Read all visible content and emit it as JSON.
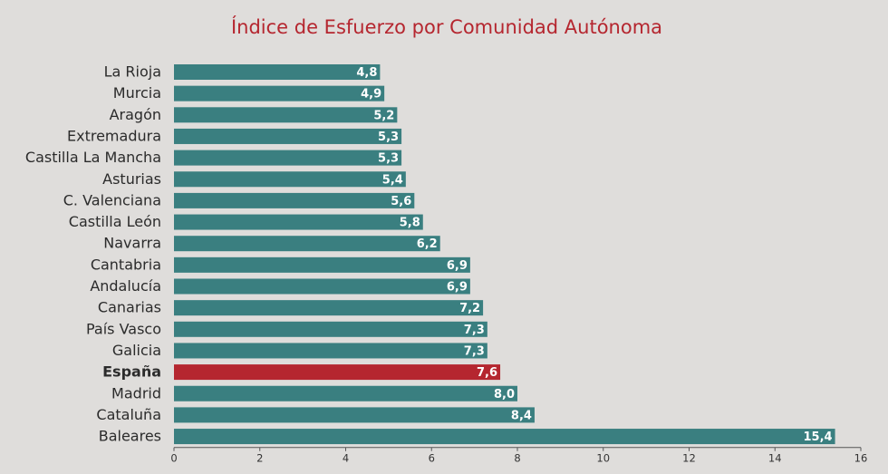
{
  "chart_data": {
    "type": "bar",
    "orientation": "horizontal",
    "title": "Índice de Esfuerzo por Comunidad Autónoma",
    "xlabel": "",
    "ylabel": "",
    "categories": [
      "La Rioja",
      "Murcia",
      "Aragón",
      "Extremadura",
      "Castilla La Mancha",
      "Asturias",
      "C. Valenciana",
      "Castilla León",
      "Navarra",
      "Cantabria",
      "Andalucía",
      "Canarias",
      "País Vasco",
      "Galicia",
      "España",
      "Madrid",
      "Cataluña",
      "Baleares"
    ],
    "values": [
      4.8,
      4.9,
      5.2,
      5.3,
      5.3,
      5.4,
      5.6,
      5.8,
      6.2,
      6.9,
      6.9,
      7.2,
      7.3,
      7.3,
      7.6,
      8.0,
      8.4,
      15.4
    ],
    "value_labels": [
      "4,8",
      "4,9",
      "5,2",
      "5,3",
      "5,3",
      "5,4",
      "5,6",
      "5,8",
      "6,2",
      "6,9",
      "6,9",
      "7,2",
      "7,3",
      "7,3",
      "7,6",
      "8,0",
      "8,4",
      "15,4"
    ],
    "highlight": "España",
    "xlim": [
      0,
      16
    ],
    "xticks": [
      0,
      2,
      4,
      6,
      8,
      10,
      12,
      14,
      16
    ],
    "grid": false,
    "legend": "none",
    "colors": {
      "bar": "#3a7f80",
      "highlight": "#b5262f",
      "title": "#b5262f",
      "background": "#dfdddb"
    }
  }
}
